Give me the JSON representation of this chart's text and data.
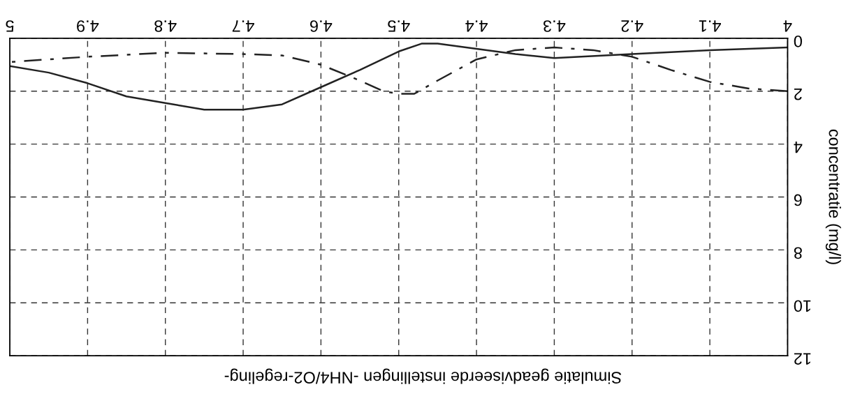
{
  "chart_data": {
    "type": "line",
    "title": "Simulatie geadviseerde instellingen -NH4/O2-regeling-",
    "ylabel": "concentratie (mg/l)",
    "xlim": [
      5,
      4
    ],
    "ylim": [
      12,
      0
    ],
    "xticks": [
      4,
      4.1,
      4.2,
      4.3,
      4.4,
      4.5,
      4.6,
      4.7,
      4.8,
      4.9,
      5
    ],
    "yticks": [
      0,
      2,
      4,
      6,
      8,
      10,
      12
    ],
    "grid": true,
    "legend": false,
    "series": [
      {
        "color": "#222222",
        "line_style": "solid",
        "x": [
          4,
          4.1,
          4.2,
          4.3,
          4.35,
          4.4,
          4.45,
          4.47,
          4.5,
          4.55,
          4.6,
          4.65,
          4.7,
          4.75,
          4.8,
          4.85,
          4.9,
          4.95,
          5
        ],
        "values": [
          0.35,
          0.45,
          0.6,
          0.75,
          0.6,
          0.4,
          0.2,
          0.2,
          0.5,
          1.2,
          1.85,
          2.5,
          2.7,
          2.7,
          2.45,
          2.2,
          1.7,
          1.3,
          1.05
        ]
      },
      {
        "color": "#222222",
        "line_style": "dashdot",
        "x": [
          4,
          4.05,
          4.1,
          4.15,
          4.2,
          4.25,
          4.3,
          4.35,
          4.4,
          4.45,
          4.48,
          4.5,
          4.52,
          4.55,
          4.6,
          4.65,
          4.7,
          4.8,
          4.9,
          5
        ],
        "values": [
          2.0,
          1.9,
          1.65,
          1.2,
          0.7,
          0.45,
          0.35,
          0.45,
          0.8,
          1.6,
          2.1,
          2.1,
          2.0,
          1.6,
          1.0,
          0.65,
          0.6,
          0.55,
          0.7,
          0.9
        ]
      }
    ]
  }
}
